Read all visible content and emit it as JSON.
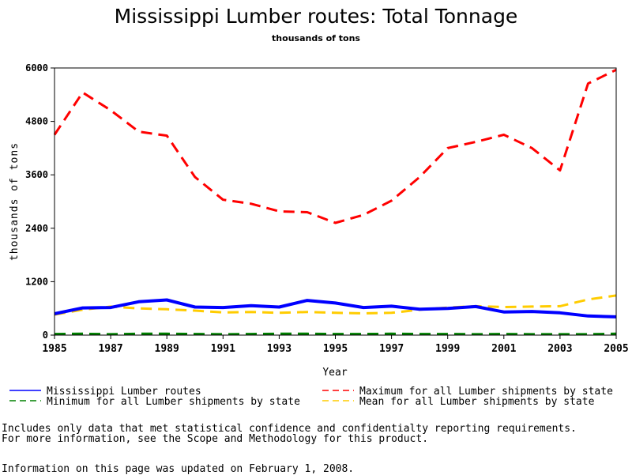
{
  "chart_data": {
    "type": "line",
    "title": "Mississippi Lumber routes: Total Tonnage",
    "subtitle": "thousands of tons",
    "xlabel": "Year",
    "ylabel": "thousands of tons",
    "xlim": [
      1985,
      2005
    ],
    "ylim": [
      0,
      6000
    ],
    "x_ticks": [
      1985,
      1987,
      1989,
      1991,
      1993,
      1995,
      1997,
      1999,
      2001,
      2003,
      2005
    ],
    "y_ticks": [
      0,
      1200,
      2400,
      3600,
      4800,
      6000
    ],
    "x": [
      1985,
      1986,
      1987,
      1988,
      1989,
      1990,
      1991,
      1992,
      1993,
      1994,
      1995,
      1996,
      1997,
      1998,
      1999,
      2000,
      2001,
      2002,
      2003,
      2004,
      2005
    ],
    "series": [
      {
        "name": "Mississippi Lumber routes",
        "color": "#0000ff",
        "dash": "solid",
        "values": [
          480,
          610,
          620,
          750,
          790,
          630,
          620,
          660,
          630,
          780,
          720,
          620,
          650,
          580,
          600,
          640,
          520,
          530,
          500,
          430,
          410
        ]
      },
      {
        "name": "Maximum for all Lumber shipments by state",
        "color": "#ff0000",
        "dash": "dashed",
        "values": [
          4500,
          5450,
          5050,
          4570,
          4480,
          3550,
          3040,
          2950,
          2780,
          2760,
          2520,
          2700,
          3020,
          3550,
          4200,
          4340,
          4500,
          4200,
          3700,
          5650,
          5960
        ]
      },
      {
        "name": "Minimum for all Lumber shipments by state",
        "color": "#008000",
        "dash": "dashed",
        "values": [
          25,
          30,
          20,
          30,
          30,
          25,
          20,
          25,
          30,
          30,
          25,
          25,
          30,
          25,
          25,
          20,
          25,
          20,
          20,
          20,
          30
        ]
      },
      {
        "name": "Mean for all Lumber shipments by state",
        "color": "#ffcc00",
        "dash": "dashed",
        "values": [
          460,
          570,
          640,
          600,
          580,
          550,
          510,
          520,
          500,
          520,
          500,
          490,
          500,
          570,
          620,
          650,
          630,
          640,
          650,
          800,
          890
        ]
      }
    ]
  },
  "notes": {
    "line1": "Includes only data that met statistical confidence and confidentialty reporting requirements.",
    "line2": "For more information, see the Scope and Methodology for this product.",
    "updated": "Information on this page was updated on February 1, 2008."
  }
}
